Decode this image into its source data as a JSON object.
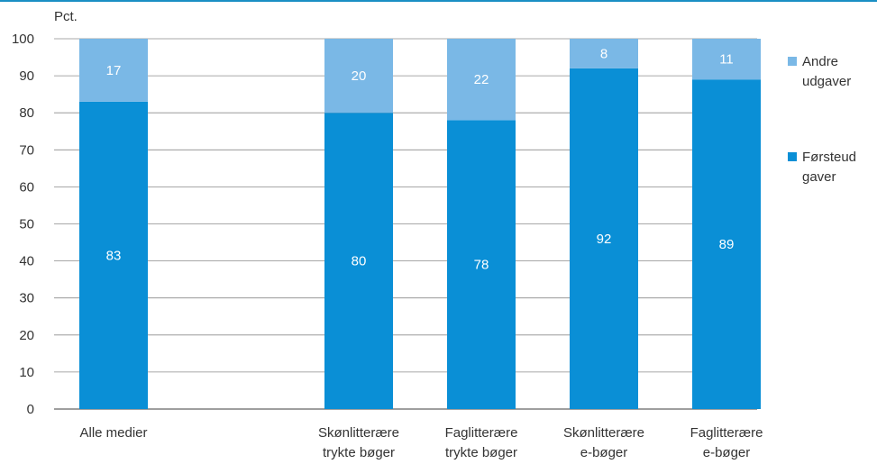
{
  "chart_data": {
    "type": "bar",
    "stacked": true,
    "unit_label": "Pct.",
    "categories": [
      [
        "Alle medier"
      ],
      [],
      [
        "Skønlitterære",
        "trykte bøger"
      ],
      [
        "Faglitterære",
        "trykte bøger"
      ],
      [
        "Skønlitterære",
        "e-bøger"
      ],
      [
        "Faglitterære",
        "e-bøger"
      ]
    ],
    "series": [
      {
        "name": [
          "Førsteud",
          "gaver"
        ],
        "color": "#0a8fd6",
        "values": [
          83,
          null,
          80,
          78,
          92,
          89
        ]
      },
      {
        "name": [
          "Andre",
          "udgaver"
        ],
        "color": "#7ab8e6",
        "values": [
          17,
          null,
          20,
          22,
          8,
          11
        ]
      }
    ],
    "ylim": [
      0,
      100
    ],
    "yticks": [
      0,
      10,
      20,
      30,
      40,
      50,
      60,
      70,
      80,
      90,
      100
    ],
    "grid": true,
    "legend_position": "right",
    "accent_color": "#1a8fc4"
  }
}
